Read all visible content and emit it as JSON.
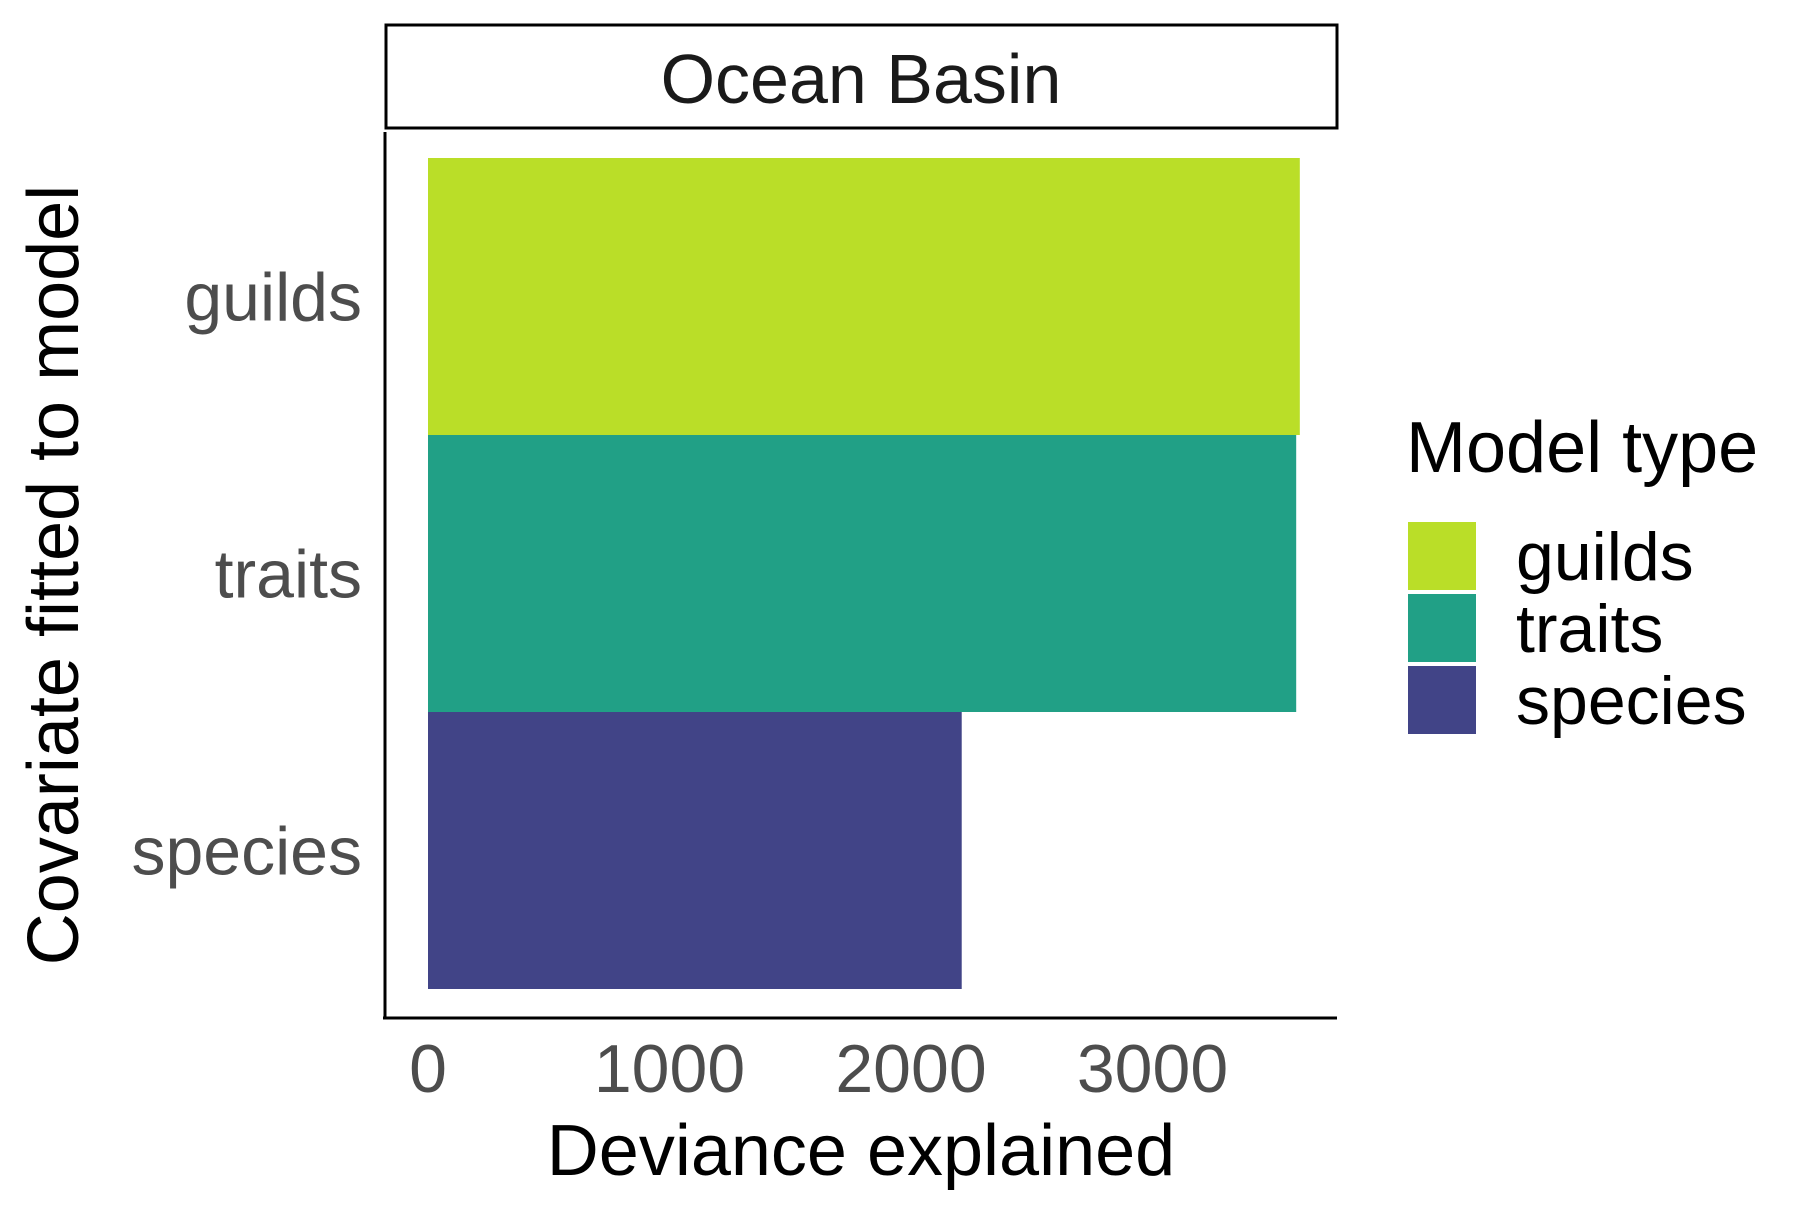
{
  "chart_data": {
    "type": "bar",
    "orientation": "horizontal",
    "facet_label": "Ocean Basin",
    "categories": [
      "guilds",
      "traits",
      "species"
    ],
    "values": [
      3610,
      3595,
      2210
    ],
    "colors": [
      "#bade28",
      "#21a086",
      "#414487"
    ],
    "xlabel": "Deviance explained",
    "ylabel": "Covariate fitted to model",
    "xticks": [
      0,
      1000,
      2000,
      3000
    ],
    "xlim": [
      0,
      3800
    ],
    "grid": false,
    "legend": {
      "title": "Model type",
      "position": "right",
      "items": [
        {
          "label": "guilds",
          "color": "#bade28"
        },
        {
          "label": "traits",
          "color": "#21a086"
        },
        {
          "label": "species",
          "color": "#414487"
        }
      ]
    }
  }
}
